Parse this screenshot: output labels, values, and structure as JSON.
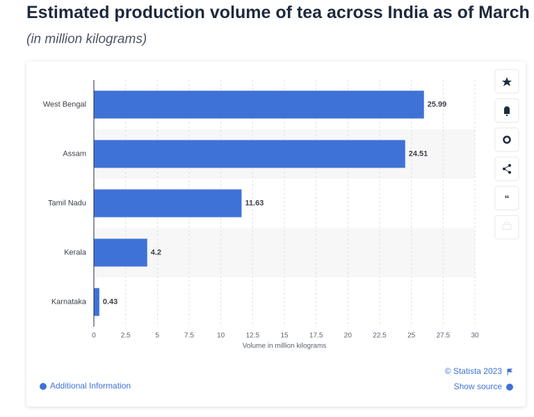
{
  "chart_data": {
    "type": "bar",
    "orientation": "horizontal",
    "title": "Estimated production volume of tea across India as of March",
    "subtitle": "(in million kilograms)",
    "categories": [
      "West Bengal",
      "Assam",
      "Tamil Nadu",
      "Kerala",
      "Karnataka"
    ],
    "values": [
      25.99,
      24.51,
      11.63,
      4.2,
      0.43
    ],
    "color": "#3f72d6",
    "xlabel": "Volume in million kilograms",
    "xlim": [
      0,
      30
    ],
    "xticks": [
      0,
      2.5,
      5,
      7.5,
      10,
      12.5,
      15,
      17.5,
      20,
      22.5,
      25,
      27.5,
      30
    ],
    "grid": true,
    "credit": "© Statista 2023",
    "source_link": "Show source",
    "info_link": "Additional Information"
  }
}
